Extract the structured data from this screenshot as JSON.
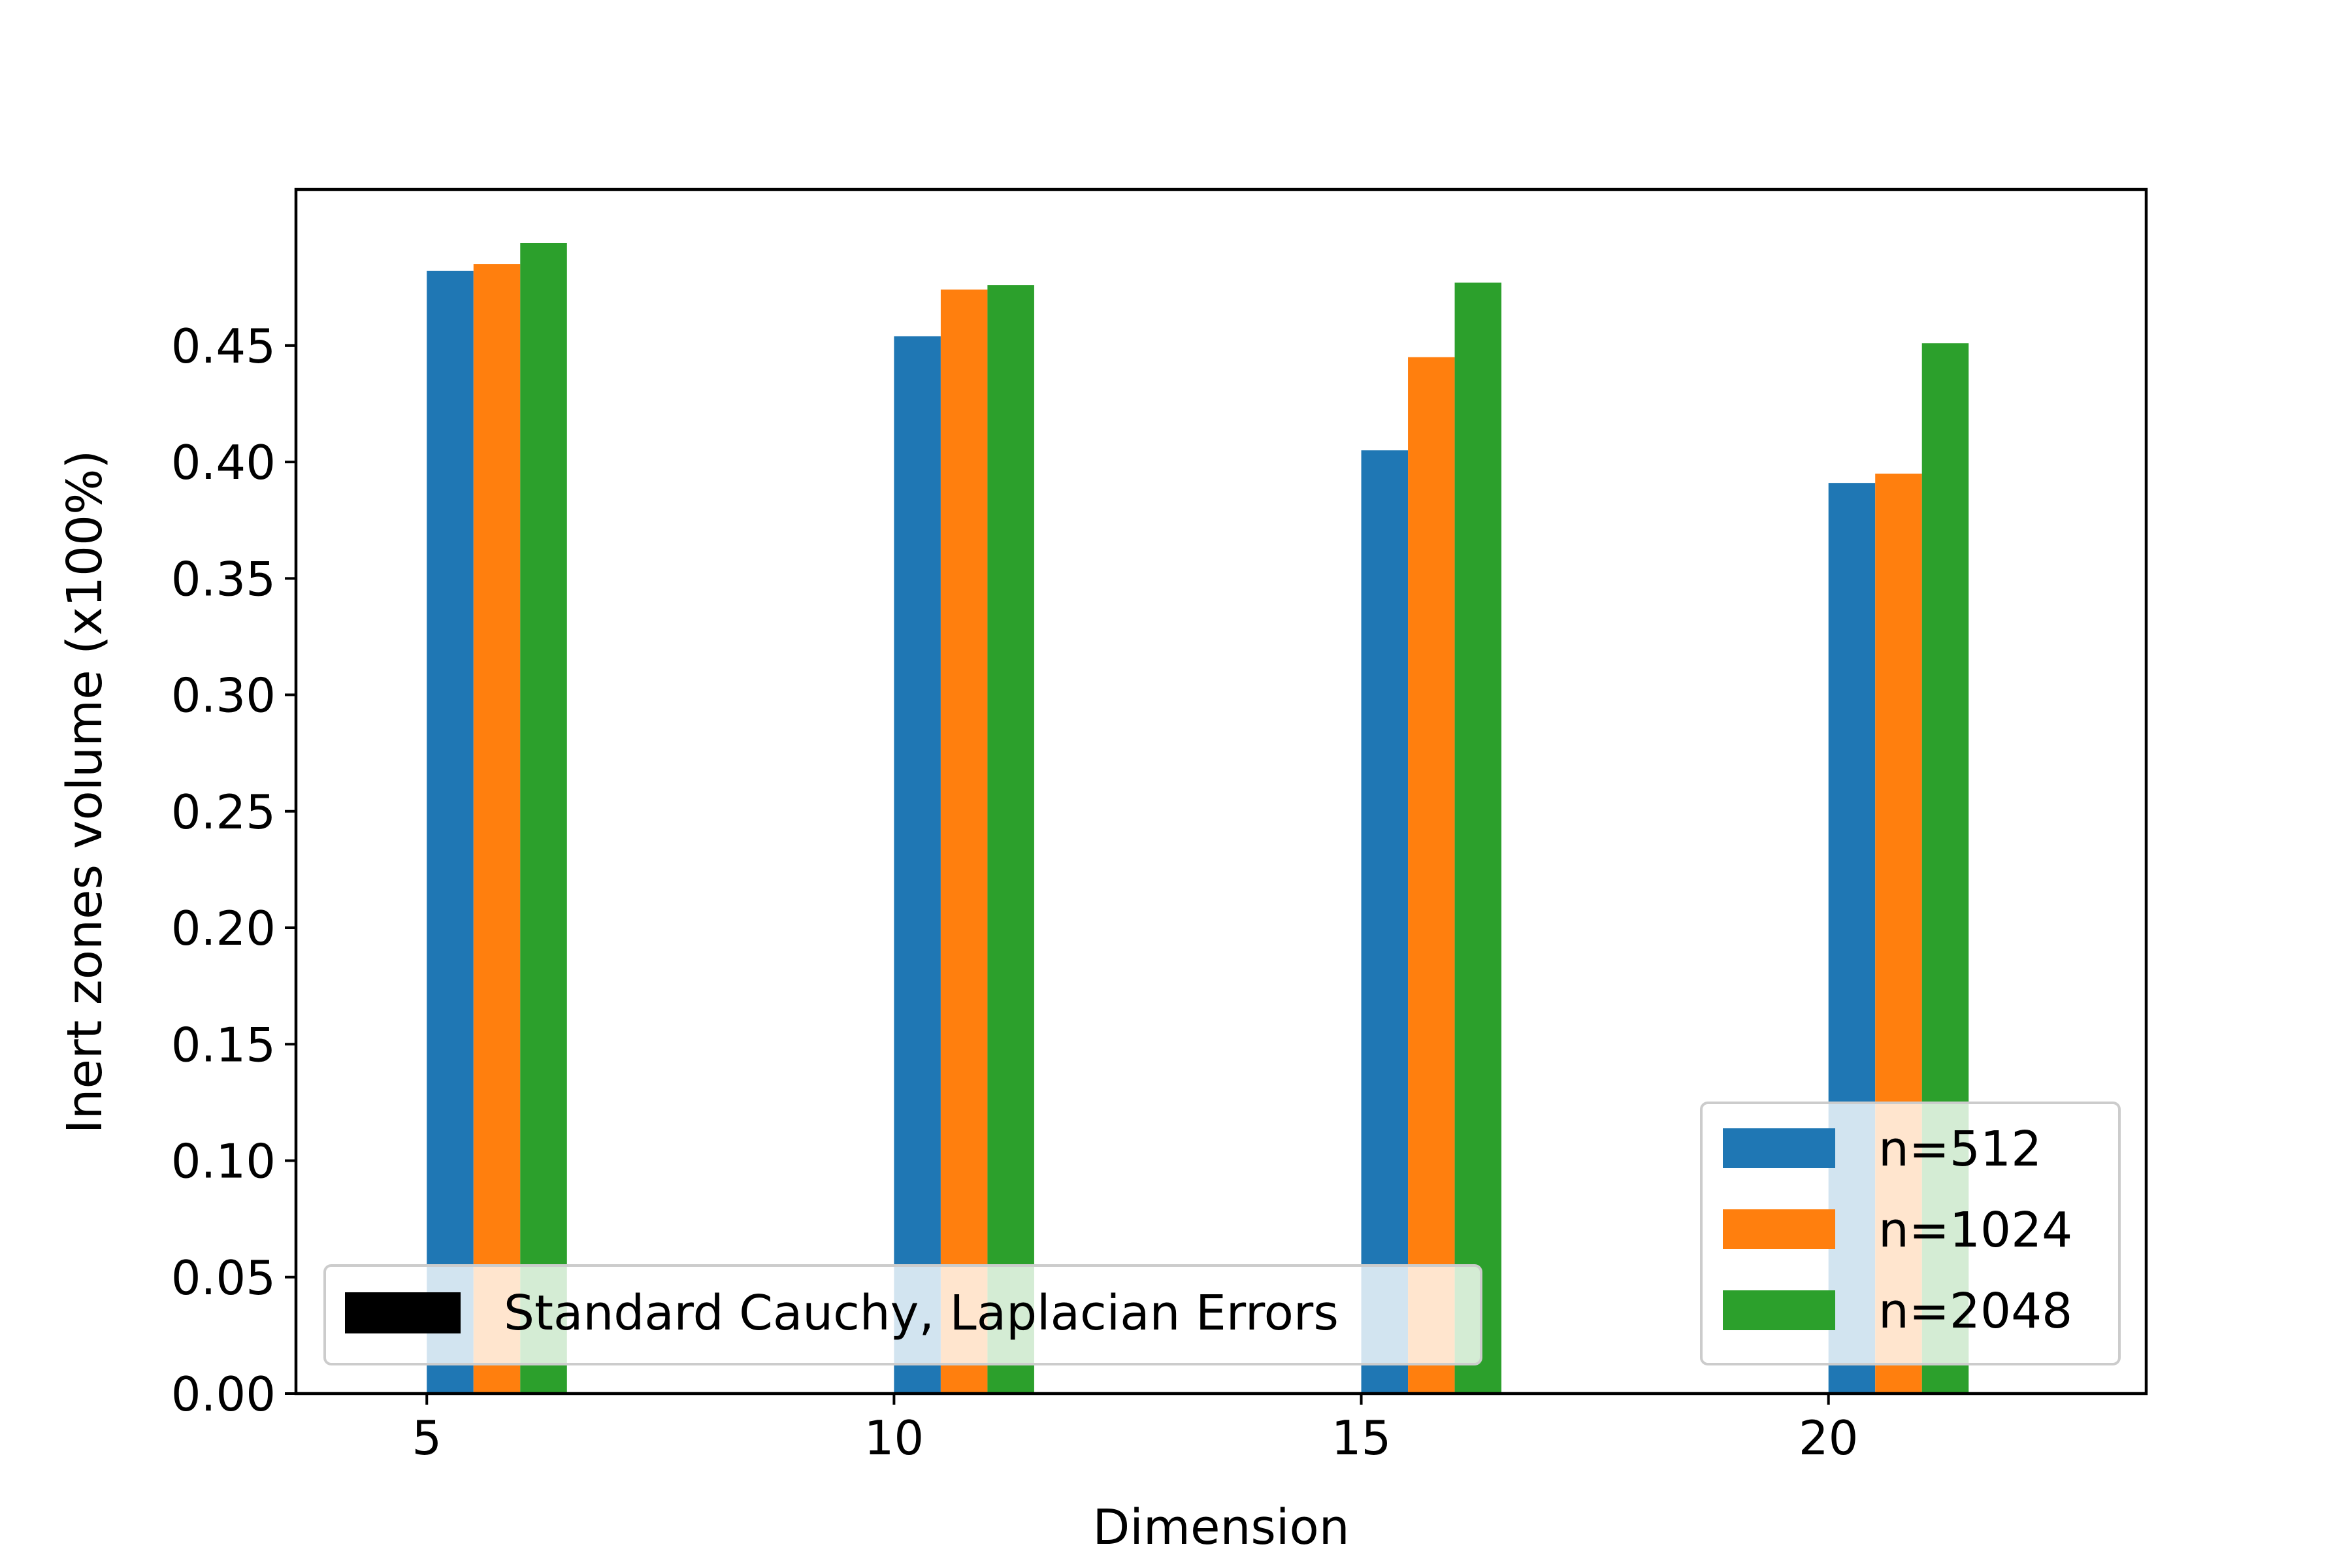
{
  "chart_data": {
    "type": "bar",
    "x": [
      5,
      10,
      15,
      20
    ],
    "x_tick_labels": [
      "5",
      "10",
      "15",
      "20"
    ],
    "xlabel": "Dimension",
    "ylabel": "Inert zones volume (x100%)",
    "ylim": [
      0,
      0.517
    ],
    "xlim": [
      3.6,
      23.4
    ],
    "y_ticks": [
      0.0,
      0.05,
      0.1,
      0.15,
      0.2,
      0.25,
      0.3,
      0.35,
      0.4,
      0.45
    ],
    "y_tick_labels": [
      "0.00",
      "0.05",
      "0.10",
      "0.15",
      "0.20",
      "0.25",
      "0.30",
      "0.35",
      "0.40",
      "0.45"
    ],
    "grid": false,
    "series": [
      {
        "name": "n=512",
        "color": "#1f77b4",
        "values": [
          0.482,
          0.454,
          0.405,
          0.391
        ]
      },
      {
        "name": "n=1024",
        "color": "#ff7f0e",
        "values": [
          0.485,
          0.474,
          0.445,
          0.395
        ]
      },
      {
        "name": "n=2048",
        "color": "#2ca02c",
        "values": [
          0.494,
          0.476,
          0.477,
          0.451
        ]
      }
    ],
    "legend": {
      "placement": "lower right",
      "entries": [
        "n=512",
        "n=1024",
        "n=2048"
      ]
    },
    "annotation_legend": {
      "placement": "lower left",
      "label": "Standard Cauchy, Laplacian Errors",
      "color": "#000000"
    }
  }
}
